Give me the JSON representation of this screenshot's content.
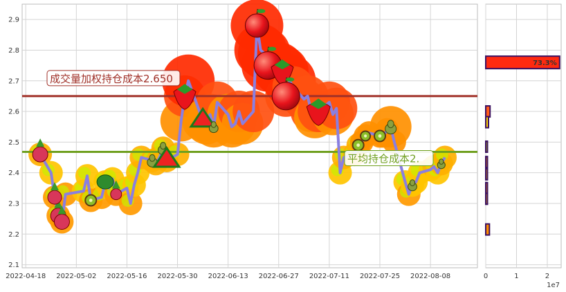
{
  "chart_data": [
    {
      "type": "line",
      "title": "",
      "xlabel": "",
      "ylabel": "",
      "x_ticks": [
        "2022-04-18",
        "2022-05-02",
        "2022-05-16",
        "2022-05-30",
        "2022-06-13",
        "2022-06-27",
        "2022-07-11",
        "2022-07-25",
        "2022-08-08"
      ],
      "y_ticks": [
        "2.1",
        "2.2",
        "2.3",
        "2.4",
        "2.5",
        "2.6",
        "2.7",
        "2.8",
        "2.9"
      ],
      "ylim": [
        2.09,
        2.95
      ],
      "xlim": [
        "2022-04-17",
        "2022-08-21"
      ],
      "grid": true,
      "series": [
        {
          "color": "#8a7fe0",
          "x": [
            "2022-04-22",
            "2022-04-25",
            "2022-04-26",
            "2022-04-27",
            "2022-04-28",
            "2022-04-29",
            "2022-05-04",
            "2022-05-05",
            "2022-05-06",
            "2022-05-09",
            "2022-05-10",
            "2022-05-11",
            "2022-05-12",
            "2022-05-13",
            "2022-05-16",
            "2022-05-17",
            "2022-05-18",
            "2022-05-19",
            "2022-05-20",
            "2022-05-23",
            "2022-05-24",
            "2022-05-25",
            "2022-05-26",
            "2022-05-27",
            "2022-05-30",
            "2022-05-31",
            "2022-06-01",
            "2022-06-02",
            "2022-06-06",
            "2022-06-07",
            "2022-06-08",
            "2022-06-09",
            "2022-06-10",
            "2022-06-13",
            "2022-06-14",
            "2022-06-15",
            "2022-06-16",
            "2022-06-17",
            "2022-06-20",
            "2022-06-21",
            "2022-06-22",
            "2022-06-23",
            "2022-06-24",
            "2022-06-27",
            "2022-06-28",
            "2022-06-29",
            "2022-06-30",
            "2022-07-01",
            "2022-07-04",
            "2022-07-05",
            "2022-07-06",
            "2022-07-07",
            "2022-07-08",
            "2022-07-11",
            "2022-07-12",
            "2022-07-13",
            "2022-07-14",
            "2022-07-15",
            "2022-07-18",
            "2022-07-19",
            "2022-07-20",
            "2022-07-21",
            "2022-07-22",
            "2022-07-25",
            "2022-07-26",
            "2022-07-27",
            "2022-07-28",
            "2022-07-29",
            "2022-08-01",
            "2022-08-02",
            "2022-08-03",
            "2022-08-04",
            "2022-08-05",
            "2022-08-08",
            "2022-08-09",
            "2022-08-10",
            "2022-08-11",
            "2022-08-12"
          ],
          "values": [
            2.46,
            2.4,
            2.32,
            2.26,
            2.24,
            2.33,
            2.34,
            2.39,
            2.31,
            2.32,
            2.37,
            2.35,
            2.38,
            2.33,
            2.35,
            2.3,
            2.36,
            2.4,
            2.45,
            2.44,
            2.43,
            2.45,
            2.48,
            2.44,
            2.46,
            2.57,
            2.65,
            2.7,
            2.57,
            2.56,
            2.59,
            2.55,
            2.63,
            2.59,
            2.55,
            2.56,
            2.6,
            2.56,
            2.6,
            2.88,
            2.8,
            2.79,
            2.75,
            2.74,
            2.73,
            2.65,
            2.7,
            2.68,
            2.64,
            2.65,
            2.6,
            2.58,
            2.6,
            2.63,
            2.59,
            2.61,
            2.4,
            2.45,
            2.46,
            2.49,
            2.5,
            2.52,
            2.53,
            2.52,
            2.52,
            2.54,
            2.55,
            2.5,
            2.37,
            2.33,
            2.36,
            2.37,
            2.4,
            2.41,
            2.42,
            2.4,
            2.43,
            2.45
          ]
        }
      ],
      "hlines": [
        {
          "value": 2.65,
          "color": "#a03028",
          "label": "成交量加权持仓成本2.650"
        },
        {
          "value": 2.468,
          "color": "#70a020",
          "label": "平均持仓成本2."
        }
      ]
    },
    {
      "type": "bar",
      "orientation": "horizontal",
      "title": "",
      "x_ticks": [
        "0",
        "1",
        "2"
      ],
      "x_exponent": "1e7",
      "xlim": [
        0,
        2.45
      ],
      "ylim": [
        2.09,
        2.95
      ],
      "grid": true,
      "bars": [
        {
          "price": 2.76,
          "value": 2.4,
          "color": "#ff2a10",
          "label": "73.3%"
        },
        {
          "price": 2.6,
          "value": 0.14,
          "color": "#ff5a1a"
        },
        {
          "price": 2.565,
          "value": 0.09,
          "color": "#ffd400"
        },
        {
          "price": 2.485,
          "value": 0.03,
          "color": "#c8e600"
        },
        {
          "price": 2.435,
          "value": 0.02,
          "color": "#ff8c00"
        },
        {
          "price": 2.395,
          "value": 0.03,
          "color": "#ffb000"
        },
        {
          "price": 2.35,
          "value": 0.04,
          "color": "#ff8c00"
        },
        {
          "price": 2.315,
          "value": 0.02,
          "color": "#ffb000"
        },
        {
          "price": 2.215,
          "value": 0.12,
          "color": "#ff8c00"
        }
      ]
    }
  ]
}
